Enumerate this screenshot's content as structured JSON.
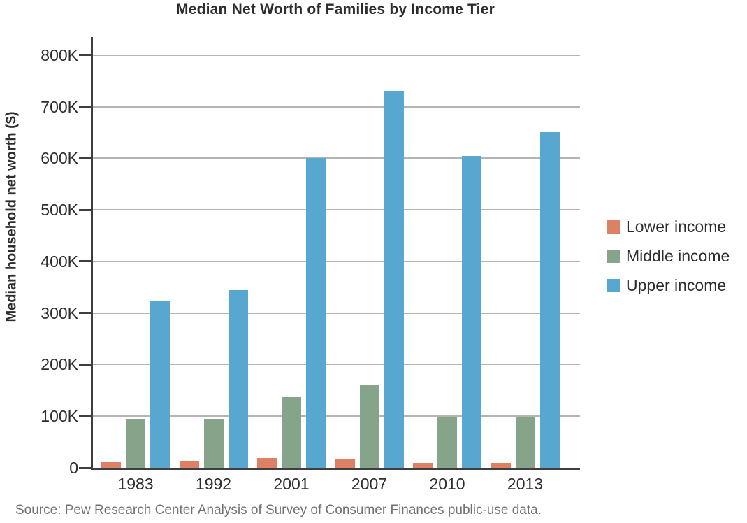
{
  "title": "Median Net Worth of Families by Income Tier",
  "source_note": "Source: Pew Research Center Analysis of Survey of Consumer Finances public-use data.",
  "colors": {
    "lower_income": "#DD8165",
    "middle_income": "#85A489",
    "upper_income": "#58A7D0",
    "axis": "#3E3E3E",
    "gridline": "#B4B4B4",
    "text": "#2D2D2D",
    "source_text": "#717171"
  },
  "chart_data": {
    "type": "bar",
    "title": "Median Net Worth of Families by Income Tier",
    "xlabel": "",
    "ylabel": "Median household net worth ($)",
    "categories": [
      "1983",
      "1992",
      "2001",
      "2007",
      "2010",
      "2013"
    ],
    "series": [
      {
        "name": "Lower income",
        "color_key": "lower_income",
        "values": [
          11000,
          14000,
          19000,
          18000,
          10000,
          9000
        ]
      },
      {
        "name": "Middle income",
        "color_key": "middle_income",
        "values": [
          95000,
          95000,
          137000,
          161000,
          98000,
          98000
        ]
      },
      {
        "name": "Upper income",
        "color_key": "upper_income",
        "values": [
          323000,
          344000,
          600000,
          730000,
          605000,
          650000
        ]
      }
    ],
    "y_ticks": [
      {
        "value": 0,
        "label": "0"
      },
      {
        "value": 100000,
        "label": "100K"
      },
      {
        "value": 200000,
        "label": "200K"
      },
      {
        "value": 300000,
        "label": "300K"
      },
      {
        "value": 400000,
        "label": "400K"
      },
      {
        "value": 500000,
        "label": "500K"
      },
      {
        "value": 600000,
        "label": "600K"
      },
      {
        "value": 700000,
        "label": "700K"
      },
      {
        "value": 800000,
        "label": "800K"
      }
    ],
    "ylim": [
      0,
      835000
    ],
    "grid": true,
    "legend_position": "right",
    "legend": [
      "Lower income",
      "Middle income",
      "Upper income"
    ]
  }
}
